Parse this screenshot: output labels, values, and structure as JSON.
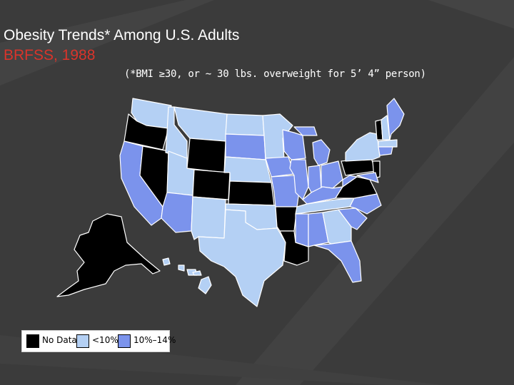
{
  "title": "Obesity Trends* Among U.S. Adults",
  "subtitle": "BRFSS, 1988",
  "note": "(*BMI ≥30, or ~ 30 lbs. overweight for 5’ 4” person)",
  "colors": {
    "background": "#3a3a3a",
    "no_data": "#000000",
    "less_10": "#b4d0f4",
    "r10_14": "#7b93ec",
    "subtitle": "#d9342b"
  },
  "legend": [
    {
      "label": "No Data",
      "color": "#000000"
    },
    {
      "label": "<10%",
      "color": "#b4d0f4"
    },
    {
      "label": "10%–14%",
      "color": "#7b93ec"
    }
  ]
}
